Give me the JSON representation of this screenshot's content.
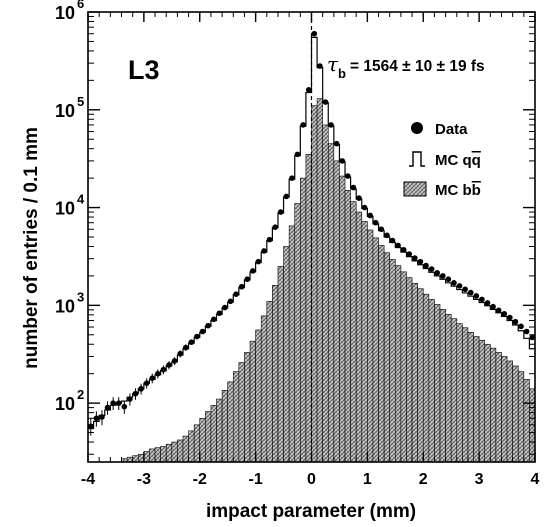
{
  "chart_data": {
    "type": "histogram",
    "title": "",
    "experiment_label": "L3",
    "annotation": {
      "symbol": "τ",
      "subscript": "b",
      "text": "= 1564 ± 10 ± 19 fs"
    },
    "xlabel": "impact parameter (mm)",
    "ylabel": "number of entries / 0.1 mm",
    "x_range": [
      -4,
      4
    ],
    "y_scale": "log",
    "y_range": [
      25,
      1000000
    ],
    "x_ticks": [
      "-4",
      "-3",
      "-2",
      "-1",
      "0",
      "1",
      "2",
      "3",
      "4"
    ],
    "y_ticks": [
      {
        "base": "10",
        "exp": "2",
        "value": 100
      },
      {
        "base": "10",
        "exp": "3",
        "value": 1000
      },
      {
        "base": "10",
        "exp": "4",
        "value": 10000
      },
      {
        "base": "10",
        "exp": "5",
        "value": 100000
      },
      {
        "base": "10",
        "exp": "6",
        "value": 1000000
      }
    ],
    "reference_line_x": 0,
    "legend": {
      "position": "right",
      "entries": [
        {
          "key": "data",
          "label": "Data"
        },
        {
          "key": "mc_qq",
          "label": "MC q",
          "bar_char": "q"
        },
        {
          "key": "mc_bb",
          "label": "MC b",
          "bar_char": "b"
        }
      ]
    },
    "bin_width": 0.1,
    "series": [
      {
        "key": "data",
        "name": "Data",
        "style": "points",
        "points": [
          {
            "x": -4.0,
            "y": 58
          },
          {
            "x": -3.9,
            "y": 70
          },
          {
            "x": -3.8,
            "y": 72
          },
          {
            "x": -3.7,
            "y": 90
          },
          {
            "x": -3.6,
            "y": 100
          },
          {
            "x": -3.5,
            "y": 100
          },
          {
            "x": -3.4,
            "y": 92
          },
          {
            "x": -3.3,
            "y": 110
          },
          {
            "x": -3.2,
            "y": 125
          },
          {
            "x": -3.1,
            "y": 140
          },
          {
            "x": -3.0,
            "y": 160
          },
          {
            "x": -2.9,
            "y": 180
          },
          {
            "x": -2.8,
            "y": 200
          },
          {
            "x": -2.7,
            "y": 220
          },
          {
            "x": -2.6,
            "y": 245
          },
          {
            "x": -2.5,
            "y": 270
          },
          {
            "x": -2.4,
            "y": 320
          },
          {
            "x": -2.3,
            "y": 370
          },
          {
            "x": -2.2,
            "y": 420
          },
          {
            "x": -2.1,
            "y": 480
          },
          {
            "x": -2.0,
            "y": 540
          },
          {
            "x": -1.9,
            "y": 620
          },
          {
            "x": -1.8,
            "y": 720
          },
          {
            "x": -1.7,
            "y": 830
          },
          {
            "x": -1.6,
            "y": 950
          },
          {
            "x": -1.5,
            "y": 1100
          },
          {
            "x": -1.4,
            "y": 1300
          },
          {
            "x": -1.3,
            "y": 1550
          },
          {
            "x": -1.2,
            "y": 1850
          },
          {
            "x": -1.1,
            "y": 2250
          },
          {
            "x": -1.0,
            "y": 2800
          },
          {
            "x": -0.9,
            "y": 3600
          },
          {
            "x": -0.8,
            "y": 4700
          },
          {
            "x": -0.7,
            "y": 6300
          },
          {
            "x": -0.6,
            "y": 9000
          },
          {
            "x": -0.5,
            "y": 13000
          },
          {
            "x": -0.4,
            "y": 20000
          },
          {
            "x": -0.3,
            "y": 35000
          },
          {
            "x": -0.2,
            "y": 70000
          },
          {
            "x": -0.1,
            "y": 160000
          },
          {
            "x": 0.0,
            "y": 600000
          },
          {
            "x": 0.1,
            "y": 280000
          },
          {
            "x": 0.2,
            "y": 120000
          },
          {
            "x": 0.3,
            "y": 70000
          },
          {
            "x": 0.4,
            "y": 45000
          },
          {
            "x": 0.5,
            "y": 30000
          },
          {
            "x": 0.6,
            "y": 21000
          },
          {
            "x": 0.7,
            "y": 16000
          },
          {
            "x": 0.8,
            "y": 12500
          },
          {
            "x": 0.9,
            "y": 10000
          },
          {
            "x": 1.0,
            "y": 8300
          },
          {
            "x": 1.1,
            "y": 7000
          },
          {
            "x": 1.2,
            "y": 6000
          },
          {
            "x": 1.3,
            "y": 5200
          },
          {
            "x": 1.4,
            "y": 4600
          },
          {
            "x": 1.5,
            "y": 4100
          },
          {
            "x": 1.6,
            "y": 3700
          },
          {
            "x": 1.7,
            "y": 3350
          },
          {
            "x": 1.8,
            "y": 3050
          },
          {
            "x": 1.9,
            "y": 2800
          },
          {
            "x": 2.0,
            "y": 2550
          },
          {
            "x": 2.1,
            "y": 2350
          },
          {
            "x": 2.2,
            "y": 2150
          },
          {
            "x": 2.3,
            "y": 2000
          },
          {
            "x": 2.4,
            "y": 1850
          },
          {
            "x": 2.5,
            "y": 1700
          },
          {
            "x": 2.6,
            "y": 1580
          },
          {
            "x": 2.7,
            "y": 1460
          },
          {
            "x": 2.8,
            "y": 1350
          },
          {
            "x": 2.9,
            "y": 1250
          },
          {
            "x": 3.0,
            "y": 1150
          },
          {
            "x": 3.1,
            "y": 1060
          },
          {
            "x": 3.2,
            "y": 970
          },
          {
            "x": 3.3,
            "y": 890
          },
          {
            "x": 3.4,
            "y": 820
          },
          {
            "x": 3.5,
            "y": 750
          },
          {
            "x": 3.6,
            "y": 680
          },
          {
            "x": 3.7,
            "y": 610
          },
          {
            "x": 3.8,
            "y": 540
          },
          {
            "x": 3.9,
            "y": 470
          }
        ]
      },
      {
        "key": "mc_qq",
        "name": "MC qq̄",
        "style": "step-outline",
        "bins": [
          {
            "x": -4.0,
            "y": 55
          },
          {
            "x": -3.9,
            "y": 65
          },
          {
            "x": -3.8,
            "y": 75
          },
          {
            "x": -3.7,
            "y": 85
          },
          {
            "x": -3.6,
            "y": 95
          },
          {
            "x": -3.5,
            "y": 100
          },
          {
            "x": -3.4,
            "y": 105
          },
          {
            "x": -3.3,
            "y": 115
          },
          {
            "x": -3.2,
            "y": 125
          },
          {
            "x": -3.1,
            "y": 140
          },
          {
            "x": -3.0,
            "y": 160
          },
          {
            "x": -2.9,
            "y": 175
          },
          {
            "x": -2.8,
            "y": 195
          },
          {
            "x": -2.7,
            "y": 215
          },
          {
            "x": -2.6,
            "y": 240
          },
          {
            "x": -2.5,
            "y": 265
          },
          {
            "x": -2.4,
            "y": 310
          },
          {
            "x": -2.3,
            "y": 360
          },
          {
            "x": -2.2,
            "y": 410
          },
          {
            "x": -2.1,
            "y": 470
          },
          {
            "x": -2.0,
            "y": 530
          },
          {
            "x": -1.9,
            "y": 610
          },
          {
            "x": -1.8,
            "y": 700
          },
          {
            "x": -1.7,
            "y": 810
          },
          {
            "x": -1.6,
            "y": 940
          },
          {
            "x": -1.5,
            "y": 1080
          },
          {
            "x": -1.4,
            "y": 1280
          },
          {
            "x": -1.3,
            "y": 1520
          },
          {
            "x": -1.2,
            "y": 1820
          },
          {
            "x": -1.1,
            "y": 2200
          },
          {
            "x": -1.0,
            "y": 2750
          },
          {
            "x": -0.9,
            "y": 3500
          },
          {
            "x": -0.8,
            "y": 4600
          },
          {
            "x": -0.7,
            "y": 6200
          },
          {
            "x": -0.6,
            "y": 8800
          },
          {
            "x": -0.5,
            "y": 12800
          },
          {
            "x": -0.4,
            "y": 19500
          },
          {
            "x": -0.3,
            "y": 34000
          },
          {
            "x": -0.2,
            "y": 68000
          },
          {
            "x": -0.1,
            "y": 150000
          },
          {
            "x": 0.0,
            "y": 550000
          },
          {
            "x": 0.1,
            "y": 270000
          },
          {
            "x": 0.2,
            "y": 118000
          },
          {
            "x": 0.3,
            "y": 68000
          },
          {
            "x": 0.4,
            "y": 44000
          },
          {
            "x": 0.5,
            "y": 29500
          },
          {
            "x": 0.6,
            "y": 20500
          },
          {
            "x": 0.7,
            "y": 15500
          },
          {
            "x": 0.8,
            "y": 12200
          },
          {
            "x": 0.9,
            "y": 9800
          },
          {
            "x": 1.0,
            "y": 8100
          },
          {
            "x": 1.1,
            "y": 6800
          },
          {
            "x": 1.2,
            "y": 5800
          },
          {
            "x": 1.3,
            "y": 5000
          },
          {
            "x": 1.4,
            "y": 4400
          },
          {
            "x": 1.5,
            "y": 3900
          },
          {
            "x": 1.6,
            "y": 3500
          },
          {
            "x": 1.7,
            "y": 3150
          },
          {
            "x": 1.8,
            "y": 2850
          },
          {
            "x": 1.9,
            "y": 2600
          },
          {
            "x": 2.0,
            "y": 2380
          },
          {
            "x": 2.1,
            "y": 2180
          },
          {
            "x": 2.2,
            "y": 2000
          },
          {
            "x": 2.3,
            "y": 1850
          },
          {
            "x": 2.4,
            "y": 1700
          },
          {
            "x": 2.5,
            "y": 1570
          },
          {
            "x": 2.6,
            "y": 1450
          },
          {
            "x": 2.7,
            "y": 1340
          },
          {
            "x": 2.8,
            "y": 1240
          },
          {
            "x": 2.9,
            "y": 1150
          },
          {
            "x": 3.0,
            "y": 1070
          },
          {
            "x": 3.1,
            "y": 990
          },
          {
            "x": 3.2,
            "y": 910
          },
          {
            "x": 3.3,
            "y": 840
          },
          {
            "x": 3.4,
            "y": 770
          },
          {
            "x": 3.5,
            "y": 700
          },
          {
            "x": 3.6,
            "y": 630
          },
          {
            "x": 3.7,
            "y": 550
          },
          {
            "x": 3.8,
            "y": 460
          },
          {
            "x": 3.9,
            "y": 360
          }
        ]
      },
      {
        "key": "mc_bb",
        "name": "MC bb̄",
        "style": "hatched-fill",
        "bins": [
          {
            "x": -3.4,
            "y": 27
          },
          {
            "x": -3.3,
            "y": 28
          },
          {
            "x": -3.2,
            "y": 29
          },
          {
            "x": -3.1,
            "y": 30
          },
          {
            "x": -3.0,
            "y": 32
          },
          {
            "x": -2.9,
            "y": 34
          },
          {
            "x": -2.8,
            "y": 35
          },
          {
            "x": -2.7,
            "y": 36
          },
          {
            "x": -2.6,
            "y": 38
          },
          {
            "x": -2.5,
            "y": 40
          },
          {
            "x": -2.4,
            "y": 42
          },
          {
            "x": -2.3,
            "y": 46
          },
          {
            "x": -2.2,
            "y": 52
          },
          {
            "x": -2.1,
            "y": 60
          },
          {
            "x": -2.0,
            "y": 70
          },
          {
            "x": -1.9,
            "y": 82
          },
          {
            "x": -1.8,
            "y": 95
          },
          {
            "x": -1.7,
            "y": 110
          },
          {
            "x": -1.6,
            "y": 135
          },
          {
            "x": -1.5,
            "y": 165
          },
          {
            "x": -1.4,
            "y": 210
          },
          {
            "x": -1.3,
            "y": 260
          },
          {
            "x": -1.2,
            "y": 330
          },
          {
            "x": -1.1,
            "y": 430
          },
          {
            "x": -1.0,
            "y": 560
          },
          {
            "x": -0.9,
            "y": 780
          },
          {
            "x": -0.8,
            "y": 1100
          },
          {
            "x": -0.7,
            "y": 1600
          },
          {
            "x": -0.6,
            "y": 2500
          },
          {
            "x": -0.5,
            "y": 4000
          },
          {
            "x": -0.4,
            "y": 6500
          },
          {
            "x": -0.3,
            "y": 11000
          },
          {
            "x": -0.2,
            "y": 20000
          },
          {
            "x": -0.1,
            "y": 35000
          },
          {
            "x": 0.0,
            "y": 110000
          },
          {
            "x": 0.1,
            "y": 130000
          },
          {
            "x": 0.2,
            "y": 70000
          },
          {
            "x": 0.3,
            "y": 45000
          },
          {
            "x": 0.4,
            "y": 30000
          },
          {
            "x": 0.5,
            "y": 21000
          },
          {
            "x": 0.6,
            "y": 15000
          },
          {
            "x": 0.7,
            "y": 11500
          },
          {
            "x": 0.8,
            "y": 9000
          },
          {
            "x": 0.9,
            "y": 7200
          },
          {
            "x": 1.0,
            "y": 5900
          },
          {
            "x": 1.1,
            "y": 4900
          },
          {
            "x": 1.2,
            "y": 4100
          },
          {
            "x": 1.3,
            "y": 3450
          },
          {
            "x": 1.4,
            "y": 2950
          },
          {
            "x": 1.5,
            "y": 2550
          },
          {
            "x": 1.6,
            "y": 2200
          },
          {
            "x": 1.7,
            "y": 1920
          },
          {
            "x": 1.8,
            "y": 1680
          },
          {
            "x": 1.9,
            "y": 1480
          },
          {
            "x": 2.0,
            "y": 1300
          },
          {
            "x": 2.1,
            "y": 1150
          },
          {
            "x": 2.2,
            "y": 1020
          },
          {
            "x": 2.3,
            "y": 910
          },
          {
            "x": 2.4,
            "y": 810
          },
          {
            "x": 2.5,
            "y": 730
          },
          {
            "x": 2.6,
            "y": 650
          },
          {
            "x": 2.7,
            "y": 590
          },
          {
            "x": 2.8,
            "y": 530
          },
          {
            "x": 2.9,
            "y": 480
          },
          {
            "x": 3.0,
            "y": 440
          },
          {
            "x": 3.1,
            "y": 400
          },
          {
            "x": 3.2,
            "y": 365
          },
          {
            "x": 3.3,
            "y": 330
          },
          {
            "x": 3.4,
            "y": 300
          },
          {
            "x": 3.5,
            "y": 270
          },
          {
            "x": 3.6,
            "y": 240
          },
          {
            "x": 3.7,
            "y": 210
          },
          {
            "x": 3.8,
            "y": 175
          },
          {
            "x": 3.9,
            "y": 140
          }
        ]
      }
    ]
  }
}
